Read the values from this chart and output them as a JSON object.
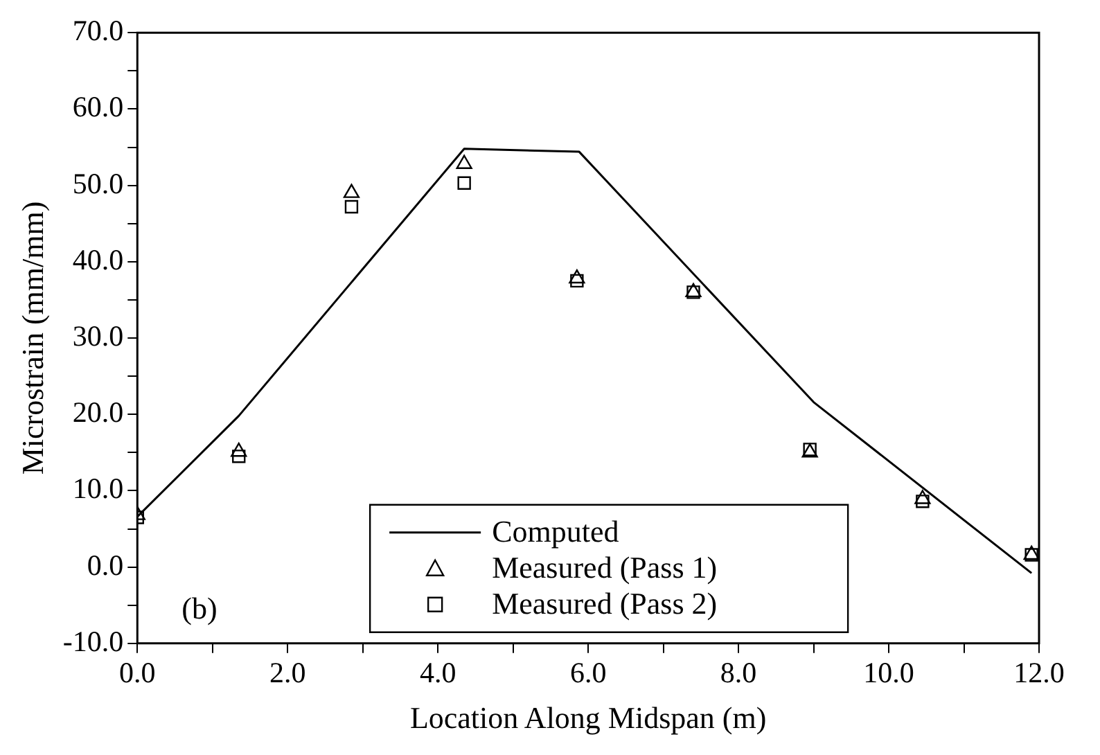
{
  "chart_data": {
    "type": "scatter",
    "xlabel": "Location Along Midspan (m)",
    "ylabel": "Microstrain (mm/mm)",
    "xlim": [
      0,
      12
    ],
    "xticks": [
      {
        "value": 0,
        "label": "0.0"
      },
      {
        "value": 1,
        "label": null
      },
      {
        "value": 2,
        "label": "2.0"
      },
      {
        "value": 3,
        "label": null
      },
      {
        "value": 4,
        "label": "4.0"
      },
      {
        "value": 5,
        "label": null
      },
      {
        "value": 6,
        "label": "6.0"
      },
      {
        "value": 7,
        "label": null
      },
      {
        "value": 8,
        "label": "8.0"
      },
      {
        "value": 9,
        "label": null
      },
      {
        "value": 10,
        "label": "10.0"
      },
      {
        "value": 11,
        "label": null
      },
      {
        "value": 12,
        "label": "12.0"
      }
    ],
    "ylim": [
      -10,
      70
    ],
    "yticks": [
      {
        "value": -10,
        "label": "-10.0"
      },
      {
        "value": -5,
        "label": null
      },
      {
        "value": 0,
        "label": "0.0"
      },
      {
        "value": 5,
        "label": null
      },
      {
        "value": 10,
        "label": "10.0"
      },
      {
        "value": 15,
        "label": null
      },
      {
        "value": 20,
        "label": "20.0"
      },
      {
        "value": 25,
        "label": null
      },
      {
        "value": 30,
        "label": "30.0"
      },
      {
        "value": 35,
        "label": null
      },
      {
        "value": 40,
        "label": "40.0"
      },
      {
        "value": 45,
        "label": null
      },
      {
        "value": 50,
        "label": "50.0"
      },
      {
        "value": 55,
        "label": null
      },
      {
        "value": 60,
        "label": "60.0"
      },
      {
        "value": 65,
        "label": null
      },
      {
        "value": 70,
        "label": "70.0"
      }
    ],
    "grid": false,
    "legend": "bottom",
    "annotations": [
      "(b)"
    ],
    "series": [
      {
        "name": "Computed",
        "type": "line",
        "marker": "none",
        "line_style": "solid",
        "color": "#000000",
        "x": [
          0,
          1.35,
          4.35,
          5.88,
          9.0,
          11.9
        ],
        "values": [
          6.6,
          19.8,
          54.8,
          54.4,
          21.6,
          -0.8
        ]
      },
      {
        "name": "Measured (Pass 1)",
        "type": "scatter",
        "marker": "triangle",
        "color": "#000000",
        "x": [
          0,
          1.35,
          2.85,
          4.35,
          5.85,
          7.4,
          8.95,
          10.45,
          11.9
        ],
        "values": [
          6.8,
          15.1,
          49,
          52.8,
          37.8,
          36,
          15,
          8.9,
          1.6
        ]
      },
      {
        "name": "Measured (Pass 2)",
        "type": "scatter",
        "marker": "square",
        "color": "#000000",
        "x": [
          0,
          1.35,
          2.85,
          4.35,
          5.85,
          7.4,
          8.95,
          10.45,
          11.9
        ],
        "values": [
          6.5,
          14.5,
          47.2,
          50.3,
          37.5,
          36,
          15.4,
          8.6,
          1.6
        ]
      }
    ]
  }
}
